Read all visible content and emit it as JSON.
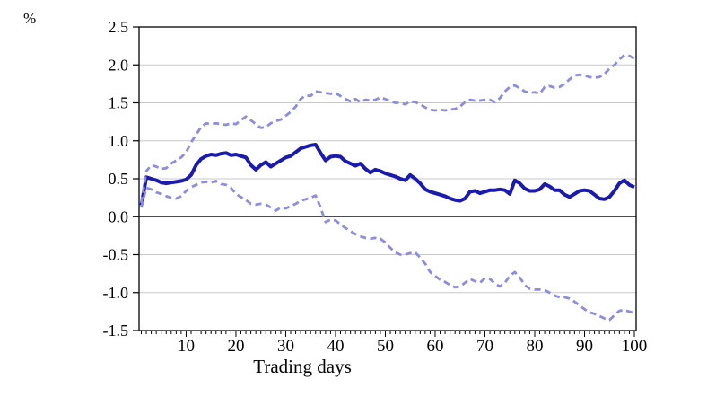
{
  "figure": {
    "unit_label": "%",
    "x_axis_title": "Trading days"
  },
  "chart_data": {
    "type": "line",
    "title": "",
    "xlabel": "Trading days",
    "ylabel": "%",
    "x_start": 1,
    "x_step": 1,
    "x_range": [
      1,
      100
    ],
    "ylim": [
      -1.5,
      2.5
    ],
    "grid": "horizontal",
    "zero_line": true,
    "legend": "none",
    "y_ticks": [
      2.5,
      2.0,
      1.5,
      1.0,
      0.5,
      0.0,
      -0.5,
      -1.0,
      -1.5
    ],
    "y_tick_labels": [
      "2.5",
      "2.0",
      "1.5",
      "1.0",
      "0.5",
      "0.0",
      "-0.5",
      "-1.0",
      "-1.5"
    ],
    "x_ticks": [
      10,
      20,
      30,
      40,
      50,
      60,
      70,
      80,
      90,
      100
    ],
    "x_tick_labels": [
      "10",
      "20",
      "30",
      "40",
      "50",
      "60",
      "70",
      "80",
      "90",
      "100"
    ],
    "colors": {
      "mean_line": "#1a1aae",
      "band_line": "#8c8ce0",
      "grid": "#c8c8c8",
      "zero_line": "#333333",
      "axis": "#000000",
      "background": "#ffffff"
    },
    "series": [
      {
        "name": "mean-car",
        "style": "solid",
        "color": "#1a1aae",
        "width": 4,
        "values": [
          0.15,
          0.52,
          0.5,
          0.48,
          0.45,
          0.44,
          0.45,
          0.46,
          0.47,
          0.49,
          0.55,
          0.68,
          0.76,
          0.8,
          0.82,
          0.81,
          0.83,
          0.84,
          0.81,
          0.82,
          0.8,
          0.78,
          0.68,
          0.62,
          0.68,
          0.72,
          0.66,
          0.7,
          0.74,
          0.78,
          0.8,
          0.85,
          0.9,
          0.92,
          0.94,
          0.95,
          0.84,
          0.74,
          0.79,
          0.8,
          0.79,
          0.73,
          0.7,
          0.67,
          0.7,
          0.63,
          0.58,
          0.62,
          0.6,
          0.57,
          0.55,
          0.53,
          0.5,
          0.48,
          0.55,
          0.5,
          0.44,
          0.36,
          0.33,
          0.31,
          0.29,
          0.27,
          0.24,
          0.22,
          0.21,
          0.24,
          0.33,
          0.34,
          0.31,
          0.33,
          0.35,
          0.35,
          0.36,
          0.35,
          0.3,
          0.48,
          0.44,
          0.37,
          0.34,
          0.34,
          0.36,
          0.43,
          0.4,
          0.35,
          0.35,
          0.29,
          0.26,
          0.3,
          0.34,
          0.35,
          0.34,
          0.29,
          0.24,
          0.23,
          0.26,
          0.34,
          0.44,
          0.48,
          0.42,
          0.39
        ]
      },
      {
        "name": "upper-band",
        "style": "dashed",
        "color": "#8c8ce0",
        "width": 2.8,
        "values": [
          0.18,
          0.6,
          0.68,
          0.66,
          0.63,
          0.64,
          0.7,
          0.74,
          0.78,
          0.85,
          0.98,
          1.08,
          1.18,
          1.23,
          1.22,
          1.23,
          1.22,
          1.21,
          1.23,
          1.22,
          1.27,
          1.32,
          1.27,
          1.22,
          1.17,
          1.18,
          1.23,
          1.26,
          1.28,
          1.33,
          1.38,
          1.45,
          1.55,
          1.6,
          1.59,
          1.65,
          1.64,
          1.63,
          1.62,
          1.63,
          1.59,
          1.55,
          1.52,
          1.55,
          1.51,
          1.54,
          1.53,
          1.54,
          1.57,
          1.55,
          1.52,
          1.5,
          1.5,
          1.48,
          1.52,
          1.51,
          1.48,
          1.44,
          1.41,
          1.4,
          1.41,
          1.4,
          1.41,
          1.42,
          1.45,
          1.51,
          1.54,
          1.53,
          1.53,
          1.54,
          1.54,
          1.51,
          1.56,
          1.65,
          1.71,
          1.73,
          1.69,
          1.65,
          1.63,
          1.64,
          1.62,
          1.71,
          1.72,
          1.7,
          1.71,
          1.75,
          1.81,
          1.86,
          1.87,
          1.86,
          1.84,
          1.83,
          1.84,
          1.88,
          1.95,
          2.0,
          2.07,
          2.13,
          2.12,
          2.08
        ]
      },
      {
        "name": "lower-band",
        "style": "dashed",
        "color": "#8c8ce0",
        "width": 2.8,
        "values": [
          0.12,
          0.38,
          0.36,
          0.32,
          0.3,
          0.27,
          0.25,
          0.24,
          0.27,
          0.34,
          0.39,
          0.42,
          0.45,
          0.46,
          0.45,
          0.47,
          0.43,
          0.42,
          0.38,
          0.3,
          0.26,
          0.22,
          0.17,
          0.16,
          0.17,
          0.16,
          0.12,
          0.08,
          0.12,
          0.11,
          0.14,
          0.17,
          0.21,
          0.23,
          0.25,
          0.28,
          0.12,
          -0.07,
          -0.04,
          -0.05,
          -0.1,
          -0.15,
          -0.19,
          -0.23,
          -0.26,
          -0.28,
          -0.29,
          -0.28,
          -0.29,
          -0.34,
          -0.41,
          -0.47,
          -0.5,
          -0.5,
          -0.48,
          -0.47,
          -0.54,
          -0.62,
          -0.73,
          -0.78,
          -0.83,
          -0.86,
          -0.9,
          -0.93,
          -0.92,
          -0.87,
          -0.82,
          -0.85,
          -0.87,
          -0.81,
          -0.82,
          -0.88,
          -0.92,
          -0.87,
          -0.78,
          -0.73,
          -0.8,
          -0.9,
          -0.95,
          -0.96,
          -0.96,
          -0.97,
          -1.0,
          -1.04,
          -1.06,
          -1.06,
          -1.08,
          -1.12,
          -1.17,
          -1.22,
          -1.26,
          -1.28,
          -1.31,
          -1.34,
          -1.36,
          -1.3,
          -1.24,
          -1.23,
          -1.25,
          -1.27
        ]
      }
    ]
  }
}
